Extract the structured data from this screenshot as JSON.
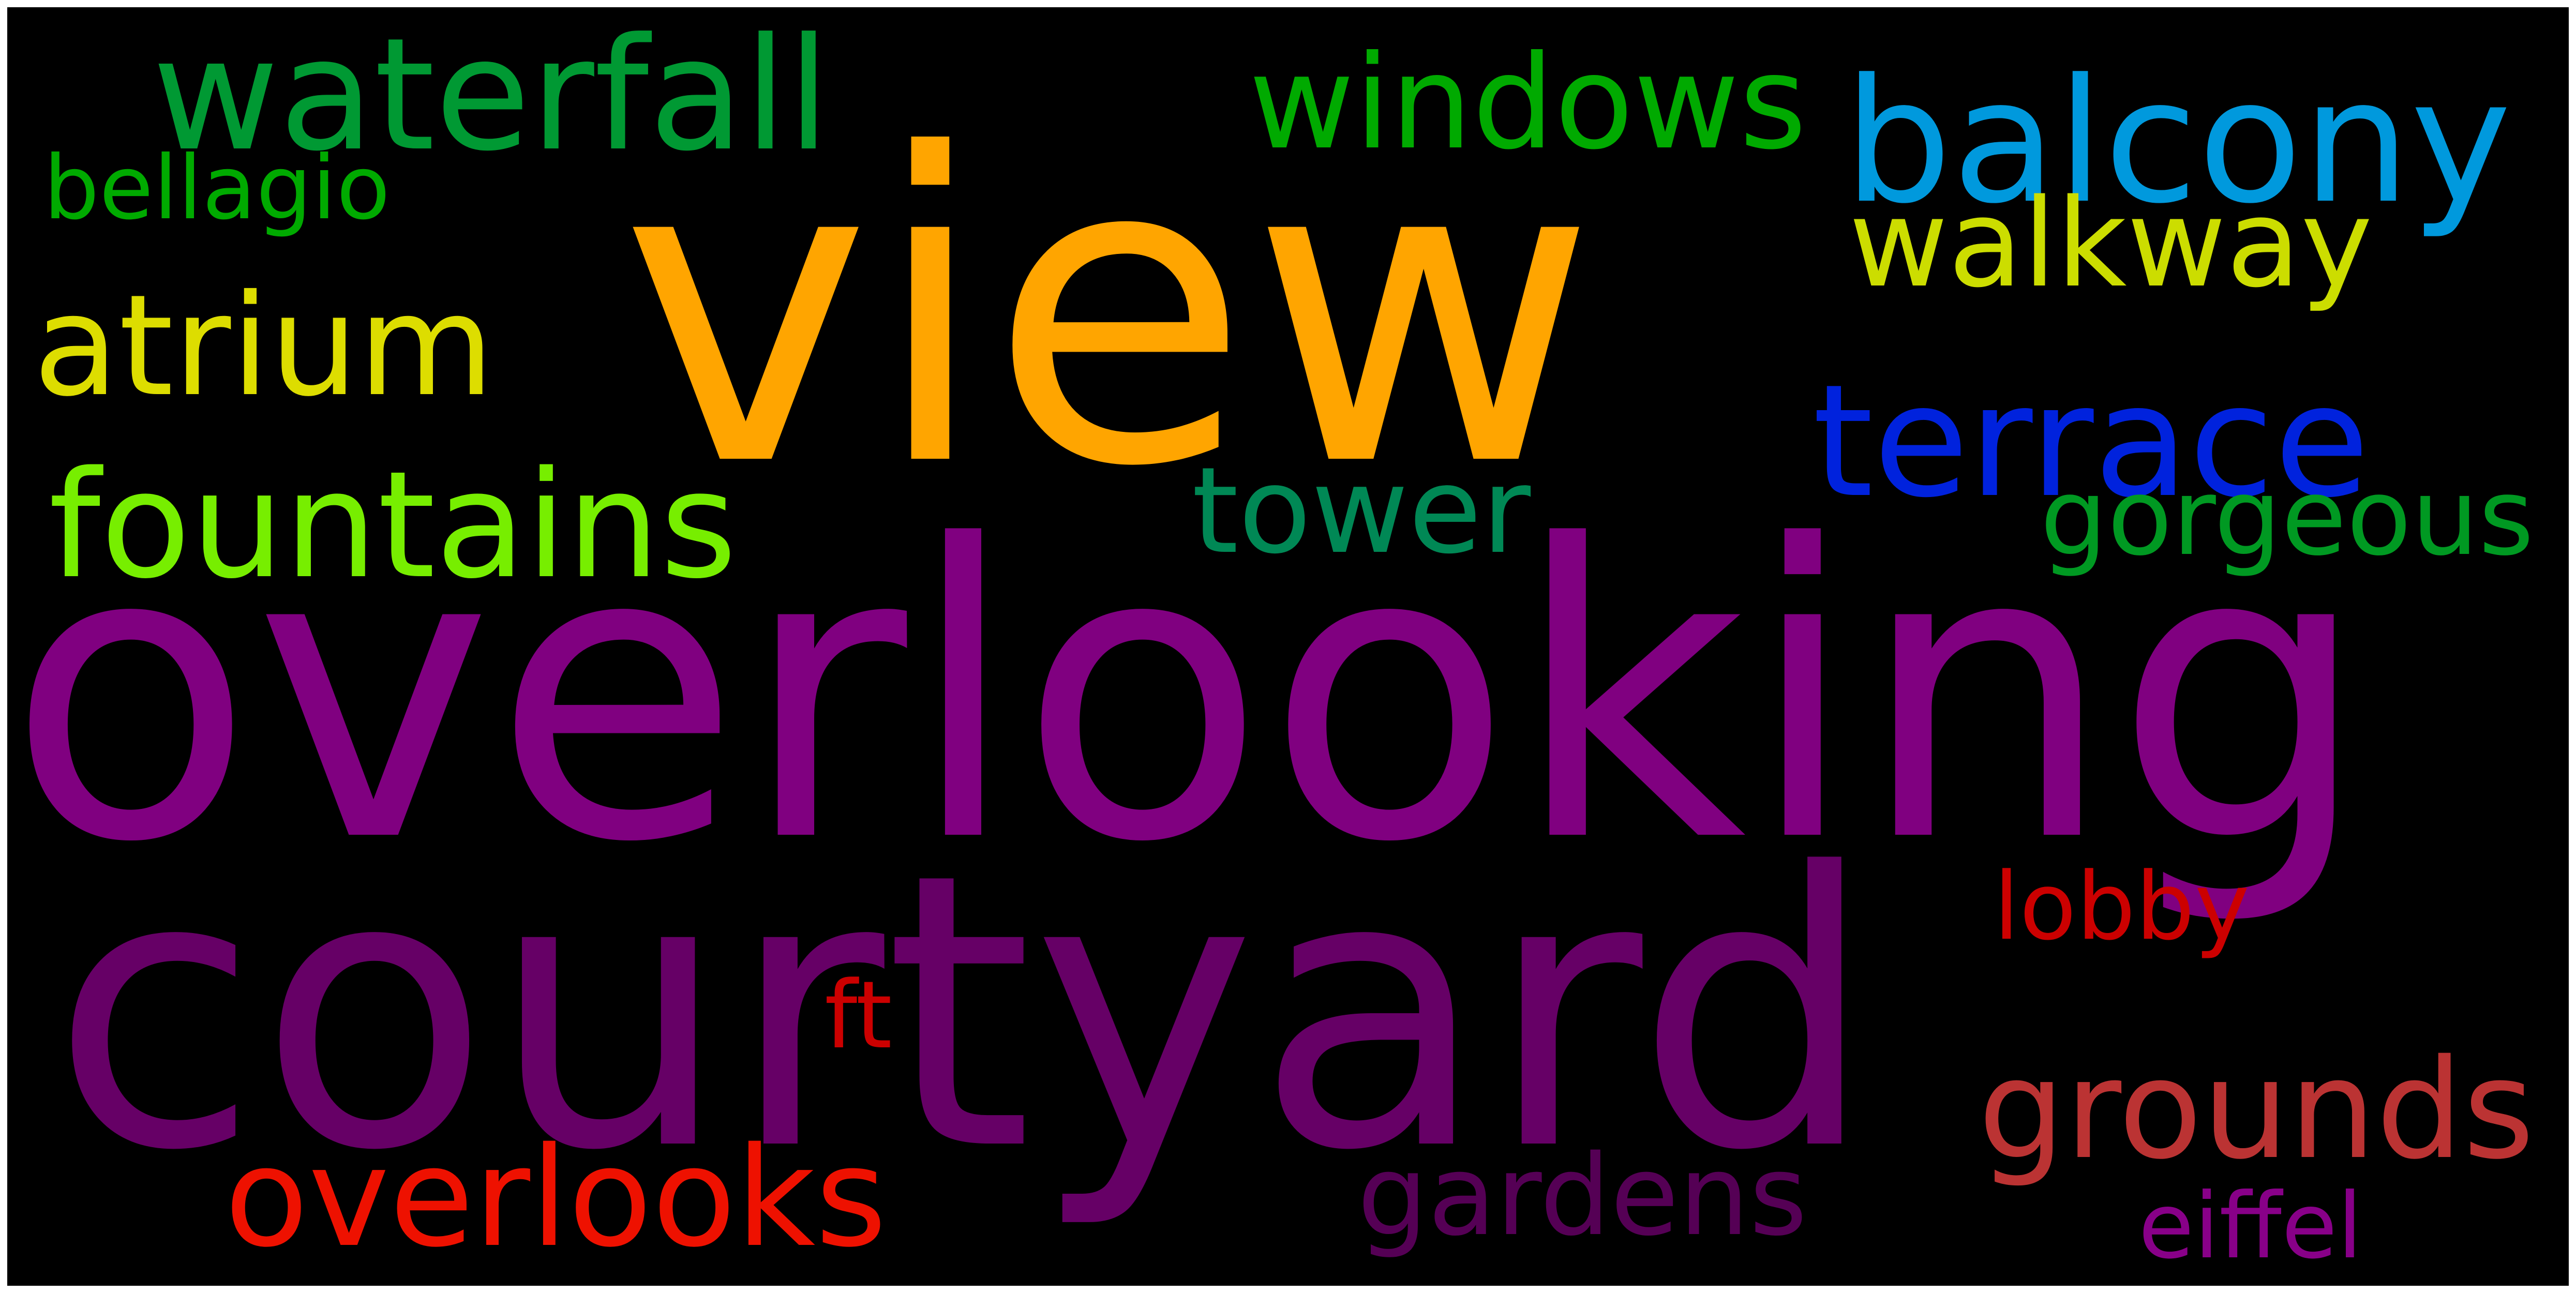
{
  "background": "#000000",
  "words": [
    {
      "text": "view",
      "color": "#FFA500"
    },
    {
      "text": "overlooking",
      "color": "#800080"
    },
    {
      "text": "courtyard",
      "color": "#660066"
    },
    {
      "text": "waterfall",
      "color": "#009933"
    },
    {
      "text": "windows",
      "color": "#00AA00"
    },
    {
      "text": "balcony",
      "color": "#0099DD"
    },
    {
      "text": "bellagio",
      "color": "#00AA00"
    },
    {
      "text": "walkway",
      "color": "#CCDD00"
    },
    {
      "text": "atrium",
      "color": "#DDDD00"
    },
    {
      "text": "terrace",
      "color": "#0022DD"
    },
    {
      "text": "fountains",
      "color": "#77EE00"
    },
    {
      "text": "tower",
      "color": "#008855"
    },
    {
      "text": "gorgeous",
      "color": "#009922"
    },
    {
      "text": "lobby",
      "color": "#CC0000"
    },
    {
      "text": "ft",
      "color": "#CC0000"
    },
    {
      "text": "grounds",
      "color": "#BB3333"
    },
    {
      "text": "overlooks",
      "color": "#EE1100"
    },
    {
      "text": "gardens",
      "color": "#550055"
    },
    {
      "text": "eiffel",
      "color": "#880088"
    }
  ]
}
